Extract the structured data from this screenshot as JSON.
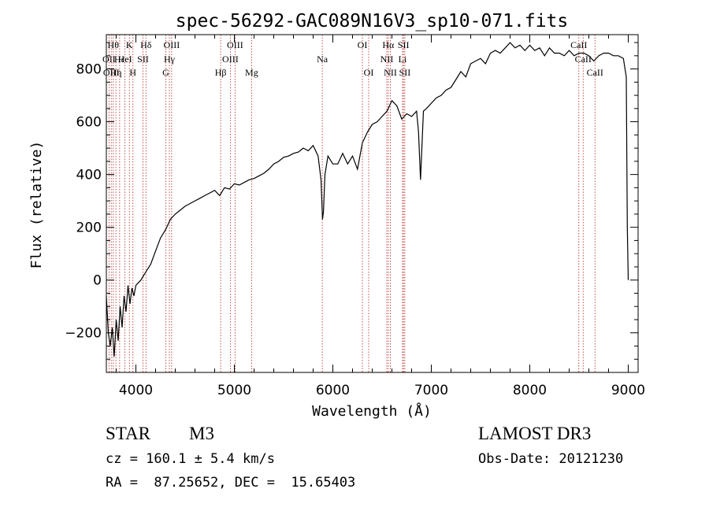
{
  "chart_data": {
    "type": "line",
    "title": "spec-56292-GAC089N16V3_sp10-071.fits",
    "xlabel": "Wavelength (Å)",
    "ylabel": "Flux (relative)",
    "xlim": [
      3700,
      9100
    ],
    "ylim": [
      -350,
      930
    ],
    "xticks": [
      4000,
      5000,
      6000,
      7000,
      8000,
      9000
    ],
    "yticks": [
      -200,
      0,
      200,
      400,
      600,
      800
    ],
    "ytick_labels": [
      "−200",
      "0",
      "200",
      "400",
      "600",
      "800"
    ],
    "series": [
      {
        "name": "spectrum",
        "x": [
          3700,
          3720,
          3740,
          3760,
          3780,
          3800,
          3820,
          3840,
          3860,
          3880,
          3900,
          3920,
          3940,
          3960,
          3980,
          4000,
          4050,
          4100,
          4150,
          4200,
          4250,
          4300,
          4350,
          4400,
          4450,
          4500,
          4550,
          4600,
          4650,
          4700,
          4750,
          4800,
          4850,
          4900,
          4950,
          5000,
          5050,
          5100,
          5150,
          5200,
          5250,
          5300,
          5350,
          5400,
          5450,
          5500,
          5550,
          5600,
          5650,
          5700,
          5750,
          5800,
          5850,
          5880,
          5895,
          5905,
          5920,
          5950,
          6000,
          6050,
          6100,
          6150,
          6200,
          6250,
          6300,
          6350,
          6400,
          6450,
          6500,
          6550,
          6600,
          6650,
          6700,
          6750,
          6800,
          6850,
          6870,
          6890,
          6920,
          6950,
          7000,
          7050,
          7100,
          7150,
          7200,
          7250,
          7300,
          7350,
          7400,
          7450,
          7500,
          7550,
          7600,
          7650,
          7700,
          7750,
          7800,
          7850,
          7900,
          7950,
          8000,
          8050,
          8100,
          8150,
          8200,
          8250,
          8300,
          8350,
          8400,
          8450,
          8500,
          8550,
          8600,
          8650,
          8700,
          8750,
          8800,
          8850,
          8900,
          8950,
          8980,
          8990,
          9000
        ],
        "values": [
          -60,
          -200,
          -250,
          -180,
          -290,
          -150,
          -230,
          -100,
          -180,
          -60,
          -120,
          -20,
          -90,
          -30,
          -60,
          -20,
          0,
          30,
          60,
          110,
          160,
          190,
          230,
          250,
          265,
          280,
          290,
          300,
          310,
          320,
          330,
          340,
          320,
          350,
          345,
          365,
          360,
          370,
          380,
          385,
          395,
          405,
          420,
          440,
          450,
          465,
          470,
          480,
          485,
          500,
          490,
          510,
          470,
          380,
          230,
          260,
          400,
          470,
          440,
          440,
          480,
          440,
          470,
          420,
          520,
          560,
          590,
          600,
          620,
          640,
          680,
          660,
          610,
          630,
          620,
          640,
          560,
          380,
          640,
          650,
          670,
          690,
          700,
          720,
          730,
          760,
          790,
          770,
          820,
          830,
          840,
          820,
          860,
          870,
          860,
          880,
          900,
          880,
          890,
          870,
          890,
          870,
          880,
          850,
          880,
          860,
          860,
          850,
          870,
          850,
          860,
          860,
          850,
          830,
          850,
          860,
          860,
          850,
          850,
          840,
          770,
          200,
          0
        ]
      }
    ],
    "lines": [
      {
        "wl": 3727,
        "label": "OII",
        "row": 1
      },
      {
        "wl": 3750,
        "label": "OIII",
        "row": 2
      },
      {
        "wl": 3770,
        "label": "Hθ",
        "row": 0
      },
      {
        "wl": 3797,
        "label": "Hη",
        "row": 2
      },
      {
        "wl": 3835,
        "label": "Hε",
        "row": 1
      },
      {
        "wl": 3889,
        "label": "HeI",
        "row": 1
      },
      {
        "wl": 3934,
        "label": "K",
        "row": 0
      },
      {
        "wl": 3970,
        "label": "H",
        "row": 2
      },
      {
        "wl": 4072,
        "label": "SII",
        "row": 1
      },
      {
        "wl": 4102,
        "label": "Hδ",
        "row": 0
      },
      {
        "wl": 4304,
        "label": "G",
        "row": 2
      },
      {
        "wl": 4340,
        "label": "Hγ",
        "row": 1
      },
      {
        "wl": 4363,
        "label": "OIII",
        "row": 0
      },
      {
        "wl": 4861,
        "label": "Hβ",
        "row": 2
      },
      {
        "wl": 4959,
        "label": "OIII",
        "row": 1
      },
      {
        "wl": 5007,
        "label": "OIII",
        "row": 0
      },
      {
        "wl": 5175,
        "label": "Mg",
        "row": 2
      },
      {
        "wl": 5893,
        "label": "Na",
        "row": 1
      },
      {
        "wl": 6300,
        "label": "OI",
        "row": 0
      },
      {
        "wl": 6364,
        "label": "OI",
        "row": 2
      },
      {
        "wl": 6548,
        "label": "NII",
        "row": 1
      },
      {
        "wl": 6563,
        "label": "Hα",
        "row": 0
      },
      {
        "wl": 6584,
        "label": "NII",
        "row": 2
      },
      {
        "wl": 6708,
        "label": "Li",
        "row": 1
      },
      {
        "wl": 6717,
        "label": "SII",
        "row": 0
      },
      {
        "wl": 6731,
        "label": "SII",
        "row": 2
      },
      {
        "wl": 8498,
        "label": "CaII",
        "row": 0
      },
      {
        "wl": 8542,
        "label": "CaII",
        "row": 1
      },
      {
        "wl": 8662,
        "label": "CaII",
        "row": 2
      }
    ]
  },
  "info": {
    "object_class": "STAR",
    "subclass": "M3",
    "cz": "cz = 160.1 ± 5.4 km/s",
    "coords": "RA =  87.25652, DEC =  15.65403",
    "survey": "LAMOST DR3",
    "obs_date": "Obs-Date: 20121230"
  },
  "colors": {
    "line_marker": "#b22222",
    "axis": "#000000",
    "spectrum": "#000000"
  }
}
